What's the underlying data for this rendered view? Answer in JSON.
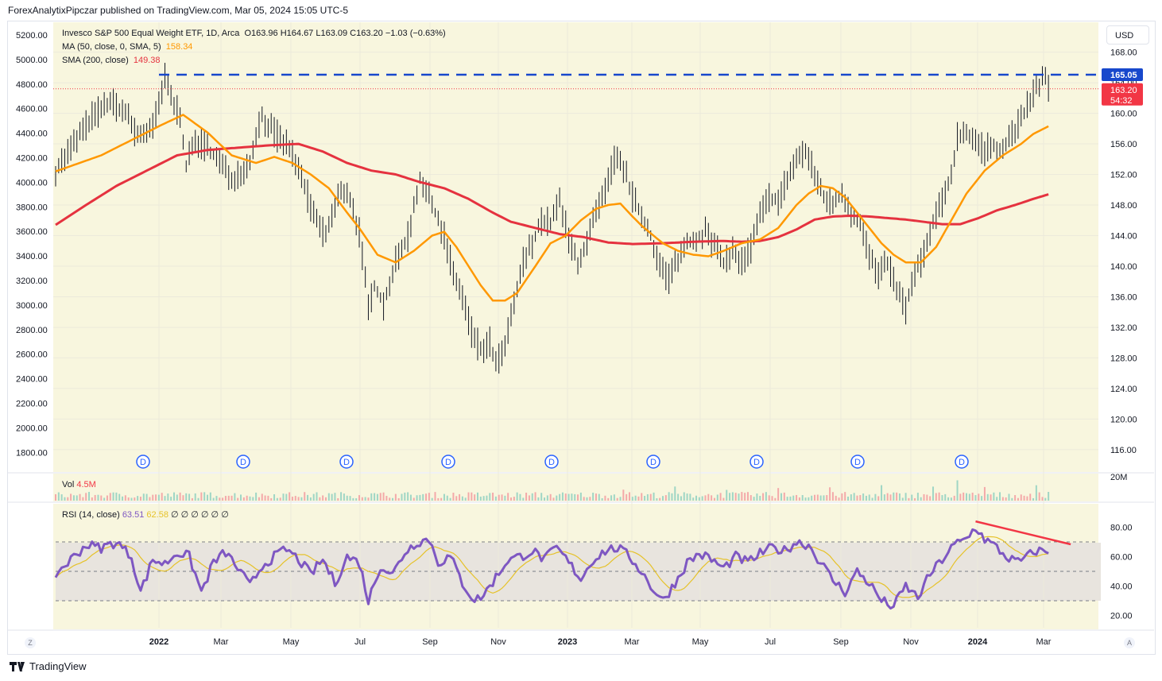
{
  "header": {
    "published": "ForexAnalytixPipczar published on TradingView.com, Mar 05, 2024 15:05 UTC-5"
  },
  "legend": {
    "title": "Invesco S&P 500 Equal Weight ETF, 1D, Arca",
    "ohlc": "O163.96  H164.67  L163.09  C163.20  −1.03 (−0.63%)",
    "ma_label": "MA (50, close, 0, SMA, 5)",
    "ma_value": "158.34",
    "sma_label": "SMA (200, close)",
    "sma_value": "149.38"
  },
  "volume": {
    "label": "Vol",
    "value": "4.5M",
    "axis_label": "20M"
  },
  "rsi": {
    "label": "RSI (14, close)",
    "value": "63.51",
    "ma_value": "62.58",
    "placeholders": "∅  ∅  ∅  ∅  ∅  ∅"
  },
  "toolbar": {
    "currency": "USD"
  },
  "footer": {
    "brand": "TradingView",
    "left_corner": "Z",
    "right_corner": "A"
  },
  "colors": {
    "bg": "#f8f6de",
    "ma": "#ff9800",
    "sma": "#e5323f",
    "resistance": "#1848cc",
    "price_badge": "#f23645",
    "rsi": "#7e57c2",
    "rsi_ma": "#e6c229",
    "trend": "#f23645",
    "dividend": "#2962ff",
    "candle": "#131722"
  },
  "chart_data": {
    "type": "candlestick",
    "title": "Invesco S&P 500 Equal Weight ETF, 1D, Arca",
    "price_axis": {
      "ticks": [
        "168.00",
        "164.00",
        "160.00",
        "156.00",
        "152.00",
        "148.00",
        "144.00",
        "140.00",
        "136.00",
        "132.00",
        "128.00",
        "124.00",
        "120.00",
        "116.00"
      ],
      "ylim": [
        113.5,
        171.5
      ]
    },
    "left_axis": {
      "ticks": [
        "5200.00",
        "5000.00",
        "4800.00",
        "4600.00",
        "4400.00",
        "4200.00",
        "4000.00",
        "3800.00",
        "3600.00",
        "3400.00",
        "3200.00",
        "3000.00",
        "2800.00",
        "2600.00",
        "2400.00",
        "2200.00",
        "2000.00",
        "1800.00"
      ]
    },
    "x_axis": {
      "labels": [
        "2022",
        "Mar",
        "May",
        "Jul",
        "Sep",
        "Nov",
        "2023",
        "Mar",
        "May",
        "Jul",
        "Sep",
        "Nov",
        "2024",
        "Mar"
      ],
      "bold": [
        "2022",
        "2023",
        "2024"
      ]
    },
    "price_points": [
      [
        0,
        152.5
      ],
      [
        6,
        156.0
      ],
      [
        12,
        159.5
      ],
      [
        18,
        161.5
      ],
      [
        23,
        160.0
      ],
      [
        27,
        157.0
      ],
      [
        32,
        158.0
      ],
      [
        36,
        164.5
      ],
      [
        39,
        161.0
      ],
      [
        41,
        160.0
      ],
      [
        43,
        153.0
      ],
      [
        46,
        156.5
      ],
      [
        50,
        155.5
      ],
      [
        55,
        153.0
      ],
      [
        58,
        151.5
      ],
      [
        61,
        152.5
      ],
      [
        64,
        153.5
      ],
      [
        66,
        157.5
      ],
      [
        68,
        159.5
      ],
      [
        73,
        157.0
      ],
      [
        77,
        155.5
      ],
      [
        82,
        150.5
      ],
      [
        85,
        146.5
      ],
      [
        89,
        144.0
      ],
      [
        93,
        149.0
      ],
      [
        96,
        150.0
      ],
      [
        100,
        144.5
      ],
      [
        103,
        134.5
      ],
      [
        105,
        137.5
      ],
      [
        108,
        135.0
      ],
      [
        112,
        140.5
      ],
      [
        116,
        144.0
      ],
      [
        120,
        151.5
      ],
      [
        124,
        148.0
      ],
      [
        128,
        144.0
      ],
      [
        131,
        139.0
      ],
      [
        134,
        136.0
      ],
      [
        137,
        131.5
      ],
      [
        140,
        129.0
      ],
      [
        143,
        130.0
      ],
      [
        145,
        127.0
      ],
      [
        148,
        129.5
      ],
      [
        151,
        135.0
      ],
      [
        154,
        140.5
      ],
      [
        157,
        143.0
      ],
      [
        160,
        146.0
      ],
      [
        163,
        145.5
      ],
      [
        166,
        148.5
      ],
      [
        169,
        143.5
      ],
      [
        172,
        140.5
      ],
      [
        175,
        143.0
      ],
      [
        178,
        147.0
      ],
      [
        181,
        149.5
      ],
      [
        184,
        154.0
      ],
      [
        187,
        153.0
      ],
      [
        190,
        149.0
      ],
      [
        193,
        146.5
      ],
      [
        196,
        144.0
      ],
      [
        199,
        140.0
      ],
      [
        202,
        138.5
      ],
      [
        205,
        141.0
      ],
      [
        208,
        143.0
      ],
      [
        211,
        143.5
      ],
      [
        214,
        144.5
      ],
      [
        217,
        142.5
      ],
      [
        220,
        140.5
      ],
      [
        223,
        142.0
      ],
      [
        226,
        140.5
      ],
      [
        229,
        142.5
      ],
      [
        232,
        146.5
      ],
      [
        235,
        149.0
      ],
      [
        238,
        148.5
      ],
      [
        241,
        151.5
      ],
      [
        244,
        154.0
      ],
      [
        247,
        155.0
      ],
      [
        250,
        152.0
      ],
      [
        253,
        149.0
      ],
      [
        256,
        148.0
      ],
      [
        259,
        149.5
      ],
      [
        262,
        147.0
      ],
      [
        265,
        145.5
      ],
      [
        268,
        141.5
      ],
      [
        271,
        138.5
      ],
      [
        274,
        140.5
      ],
      [
        277,
        137.0
      ],
      [
        280,
        134.5
      ],
      [
        283,
        139.0
      ],
      [
        286,
        141.5
      ],
      [
        289,
        145.5
      ],
      [
        292,
        148.5
      ],
      [
        295,
        152.0
      ],
      [
        297,
        157.0
      ],
      [
        300,
        157.5
      ],
      [
        303,
        156.5
      ],
      [
        306,
        155.0
      ],
      [
        309,
        156.0
      ],
      [
        312,
        155.0
      ],
      [
        315,
        157.5
      ],
      [
        318,
        159.0
      ],
      [
        322,
        162.5
      ],
      [
        326,
        165.0
      ],
      [
        327,
        163.2
      ]
    ],
    "ma50_points": [
      [
        0,
        152.4
      ],
      [
        15,
        154.5
      ],
      [
        25,
        156.5
      ],
      [
        35,
        158.5
      ],
      [
        42,
        159.8
      ],
      [
        50,
        157.5
      ],
      [
        58,
        154.5
      ],
      [
        66,
        153.5
      ],
      [
        72,
        154.3
      ],
      [
        78,
        153.5
      ],
      [
        84,
        152.0
      ],
      [
        90,
        150.2
      ],
      [
        96,
        147.0
      ],
      [
        100,
        145.0
      ],
      [
        106,
        141.5
      ],
      [
        112,
        140.5
      ],
      [
        118,
        142.0
      ],
      [
        124,
        144.0
      ],
      [
        128,
        144.5
      ],
      [
        132,
        142.5
      ],
      [
        136,
        140.0
      ],
      [
        140,
        137.5
      ],
      [
        144,
        135.5
      ],
      [
        148,
        135.5
      ],
      [
        152,
        136.5
      ],
      [
        158,
        140.0
      ],
      [
        163,
        143.0
      ],
      [
        168,
        144.0
      ],
      [
        173,
        146.0
      ],
      [
        178,
        147.5
      ],
      [
        182,
        148.0
      ],
      [
        186,
        148.2
      ],
      [
        190,
        146.5
      ],
      [
        193,
        145.3
      ],
      [
        196,
        144.3
      ],
      [
        200,
        143.0
      ],
      [
        205,
        142.0
      ],
      [
        210,
        141.5
      ],
      [
        215,
        141.3
      ],
      [
        220,
        142.0
      ],
      [
        226,
        143.0
      ],
      [
        232,
        143.5
      ],
      [
        238,
        145.0
      ],
      [
        244,
        148.0
      ],
      [
        248,
        149.5
      ],
      [
        252,
        150.5
      ],
      [
        256,
        150.2
      ],
      [
        260,
        149.0
      ],
      [
        264,
        147.0
      ],
      [
        268,
        145.0
      ],
      [
        272,
        143.0
      ],
      [
        276,
        141.5
      ],
      [
        280,
        140.5
      ],
      [
        285,
        140.5
      ],
      [
        290,
        142.5
      ],
      [
        295,
        146.0
      ],
      [
        300,
        149.5
      ],
      [
        306,
        152.5
      ],
      [
        312,
        154.5
      ],
      [
        318,
        156.0
      ],
      [
        322,
        157.3
      ],
      [
        327,
        158.3
      ]
    ],
    "sma200_points": [
      [
        0,
        145.4
      ],
      [
        10,
        148.0
      ],
      [
        20,
        150.5
      ],
      [
        30,
        152.5
      ],
      [
        40,
        154.5
      ],
      [
        50,
        155.2
      ],
      [
        60,
        155.5
      ],
      [
        70,
        155.8
      ],
      [
        80,
        156.0
      ],
      [
        88,
        155.0
      ],
      [
        96,
        153.5
      ],
      [
        104,
        152.5
      ],
      [
        112,
        152.0
      ],
      [
        120,
        151.0
      ],
      [
        128,
        150.2
      ],
      [
        136,
        148.8
      ],
      [
        144,
        147.0
      ],
      [
        150,
        145.8
      ],
      [
        158,
        145.0
      ],
      [
        166,
        144.2
      ],
      [
        174,
        143.8
      ],
      [
        182,
        143.1
      ],
      [
        190,
        142.9
      ],
      [
        200,
        143.0
      ],
      [
        210,
        143.2
      ],
      [
        220,
        143.3
      ],
      [
        226,
        143.2
      ],
      [
        232,
        143.3
      ],
      [
        238,
        143.8
      ],
      [
        244,
        144.8
      ],
      [
        250,
        146.1
      ],
      [
        256,
        146.5
      ],
      [
        262,
        146.6
      ],
      [
        268,
        146.5
      ],
      [
        274,
        146.3
      ],
      [
        280,
        146.1
      ],
      [
        286,
        145.8
      ],
      [
        292,
        145.5
      ],
      [
        298,
        145.5
      ],
      [
        304,
        146.3
      ],
      [
        310,
        147.3
      ],
      [
        316,
        148.0
      ],
      [
        322,
        148.8
      ],
      [
        327,
        149.4
      ]
    ],
    "resistance": 165.05,
    "last_price": 163.2,
    "price_badges": [
      "165.05",
      "163.20",
      "54:32"
    ],
    "rsi_axis": {
      "ticks": [
        "80.00",
        "60.00",
        "40.00",
        "20.00"
      ],
      "upper": 70,
      "lower": 30
    },
    "rsi_points": [
      [
        0,
        48
      ],
      [
        5,
        58
      ],
      [
        10,
        68
      ],
      [
        15,
        66
      ],
      [
        20,
        70
      ],
      [
        25,
        60
      ],
      [
        28,
        36
      ],
      [
        32,
        58
      ],
      [
        36,
        55
      ],
      [
        40,
        63
      ],
      [
        44,
        60
      ],
      [
        48,
        36
      ],
      [
        52,
        56
      ],
      [
        56,
        63
      ],
      [
        60,
        52
      ],
      [
        64,
        40
      ],
      [
        68,
        54
      ],
      [
        72,
        60
      ],
      [
        76,
        65
      ],
      [
        80,
        58
      ],
      [
        84,
        48
      ],
      [
        88,
        58
      ],
      [
        92,
        42
      ],
      [
        96,
        60
      ],
      [
        100,
        56
      ],
      [
        103,
        30
      ],
      [
        107,
        54
      ],
      [
        111,
        48
      ],
      [
        115,
        63
      ],
      [
        119,
        70
      ],
      [
        123,
        72
      ],
      [
        126,
        56
      ],
      [
        130,
        60
      ],
      [
        134,
        42
      ],
      [
        138,
        30
      ],
      [
        141,
        34
      ],
      [
        145,
        46
      ],
      [
        149,
        58
      ],
      [
        153,
        60
      ],
      [
        157,
        64
      ],
      [
        161,
        58
      ],
      [
        165,
        66
      ],
      [
        169,
        56
      ],
      [
        173,
        45
      ],
      [
        177,
        58
      ],
      [
        181,
        64
      ],
      [
        185,
        66
      ],
      [
        189,
        60
      ],
      [
        193,
        50
      ],
      [
        196,
        40
      ],
      [
        200,
        30
      ],
      [
        204,
        42
      ],
      [
        208,
        56
      ],
      [
        212,
        62
      ],
      [
        216,
        58
      ],
      [
        220,
        52
      ],
      [
        224,
        60
      ],
      [
        228,
        56
      ],
      [
        232,
        62
      ],
      [
        236,
        66
      ],
      [
        240,
        64
      ],
      [
        244,
        70
      ],
      [
        248,
        68
      ],
      [
        252,
        56
      ],
      [
        256,
        44
      ],
      [
        260,
        36
      ],
      [
        264,
        50
      ],
      [
        268,
        42
      ],
      [
        272,
        30
      ],
      [
        276,
        26
      ],
      [
        280,
        40
      ],
      [
        284,
        32
      ],
      [
        288,
        48
      ],
      [
        292,
        58
      ],
      [
        296,
        68
      ],
      [
        300,
        72
      ],
      [
        303,
        80
      ],
      [
        306,
        72
      ],
      [
        310,
        66
      ],
      [
        313,
        60
      ],
      [
        317,
        56
      ],
      [
        320,
        60
      ],
      [
        323,
        64
      ],
      [
        327,
        63.5
      ]
    ],
    "rsi_trendline": [
      [
        303,
        84
      ],
      [
        327,
        70
      ]
    ],
    "dividend_markers": [
      "D",
      "D",
      "D",
      "D",
      "D",
      "D",
      "D",
      "D",
      "D"
    ]
  }
}
